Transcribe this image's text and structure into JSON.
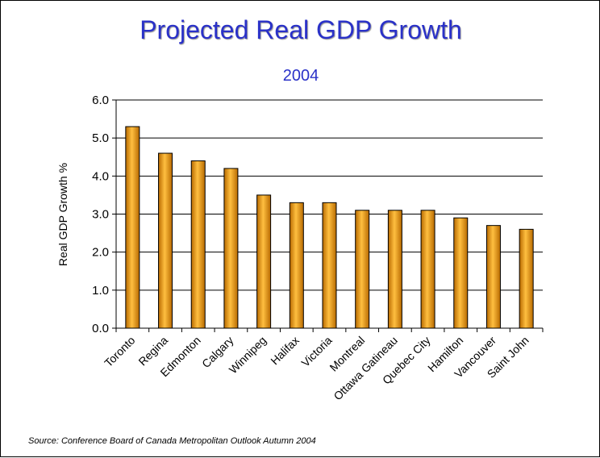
{
  "slide": {
    "title": "Projected Real GDP Growth",
    "subtitle": "2004",
    "source": "Source:  Conference Board of Canada Metropolitan Outlook Autumn 2004"
  },
  "colors": {
    "title": "#2a31c8",
    "bar_fill_light": "#ffbf40",
    "bar_fill_dark": "#b86a00",
    "bar_stroke": "#000000"
  },
  "chart_data": {
    "type": "bar",
    "title": "",
    "xlabel": "",
    "ylabel": "Real GDP Growth %",
    "ylim": [
      0,
      6
    ],
    "ytick_values": [
      0,
      1,
      2,
      3,
      4,
      5,
      6
    ],
    "ytick_labels": [
      "0.0",
      "1.0",
      "2.0",
      "3.0",
      "4.0",
      "5.0",
      "6.0"
    ],
    "grid": true,
    "legend": "none",
    "categories": [
      "Toronto",
      "Regina",
      "Edmonton",
      "Calgary",
      "Winnipeg",
      "Halifax",
      "Victoria",
      "Montreal",
      "Ottawa Gatineau",
      "Quebec City",
      "Hamilton",
      "Vancouver",
      "Saint John"
    ],
    "values": [
      5.3,
      4.6,
      4.4,
      4.2,
      3.5,
      3.3,
      3.3,
      3.1,
      3.1,
      3.1,
      2.9,
      2.7,
      2.6
    ]
  }
}
